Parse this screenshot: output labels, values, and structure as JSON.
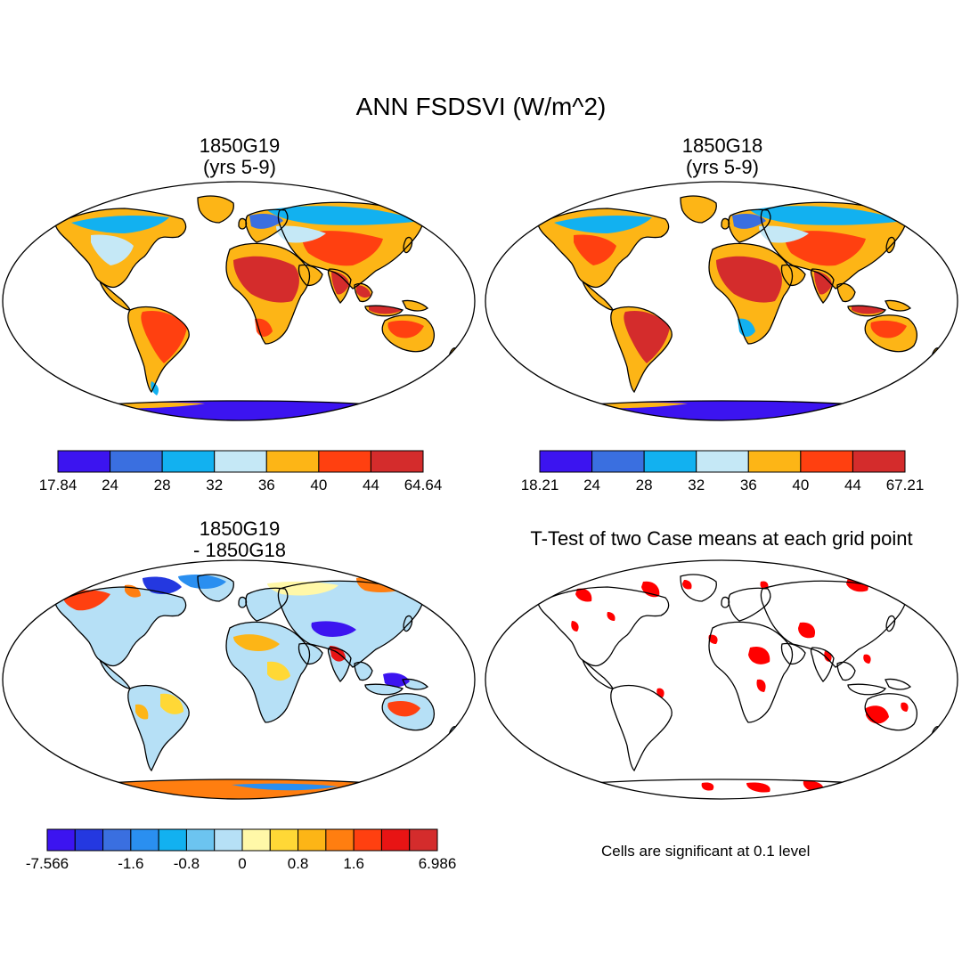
{
  "figure": {
    "title": "ANN FSDSVI (W/m^2)"
  },
  "panels": [
    {
      "id": "case1",
      "title_line1": "1850G19",
      "title_line2": "(yrs 5-9)",
      "colorbar": {
        "colors": [
          "#3c14f0",
          "#3a6fe0",
          "#12b1f0",
          "#c5e8f6",
          "#fdb516",
          "#ff4010",
          "#d42c2c"
        ],
        "labels": [
          "17.84",
          "24",
          "28",
          "32",
          "36",
          "40",
          "44",
          "64.64"
        ]
      }
    },
    {
      "id": "case2",
      "title_line1": "1850G18",
      "title_line2": "(yrs 5-9)",
      "colorbar": {
        "colors": [
          "#3c14f0",
          "#3a6fe0",
          "#12b1f0",
          "#c5e8f6",
          "#fdb516",
          "#ff4010",
          "#d42c2c"
        ],
        "labels": [
          "18.21",
          "24",
          "28",
          "32",
          "36",
          "40",
          "44",
          "67.21"
        ]
      }
    },
    {
      "id": "difference",
      "title_line1": "1850G19",
      "title_line2": "- 1850G18",
      "colorbar": {
        "colors": [
          "#3c14f0",
          "#2438e0",
          "#3a6fe0",
          "#2a8ff0",
          "#12b1f0",
          "#6cc4f0",
          "#b6e0f6",
          "#fff8a8",
          "#ffd836",
          "#fdb516",
          "#ff7e10",
          "#ff4010",
          "#e81414",
          "#d42c2c"
        ],
        "labels": [
          "-7.566",
          "-1.6",
          "-0.8",
          "0",
          "0.8",
          "1.6",
          "6.986"
        ]
      }
    },
    {
      "id": "ttest",
      "title_line1": "T-Test of two Case means at each grid point",
      "note": "Cells are significant at 0.1 level",
      "significant_color": "#ff0000"
    }
  ]
}
